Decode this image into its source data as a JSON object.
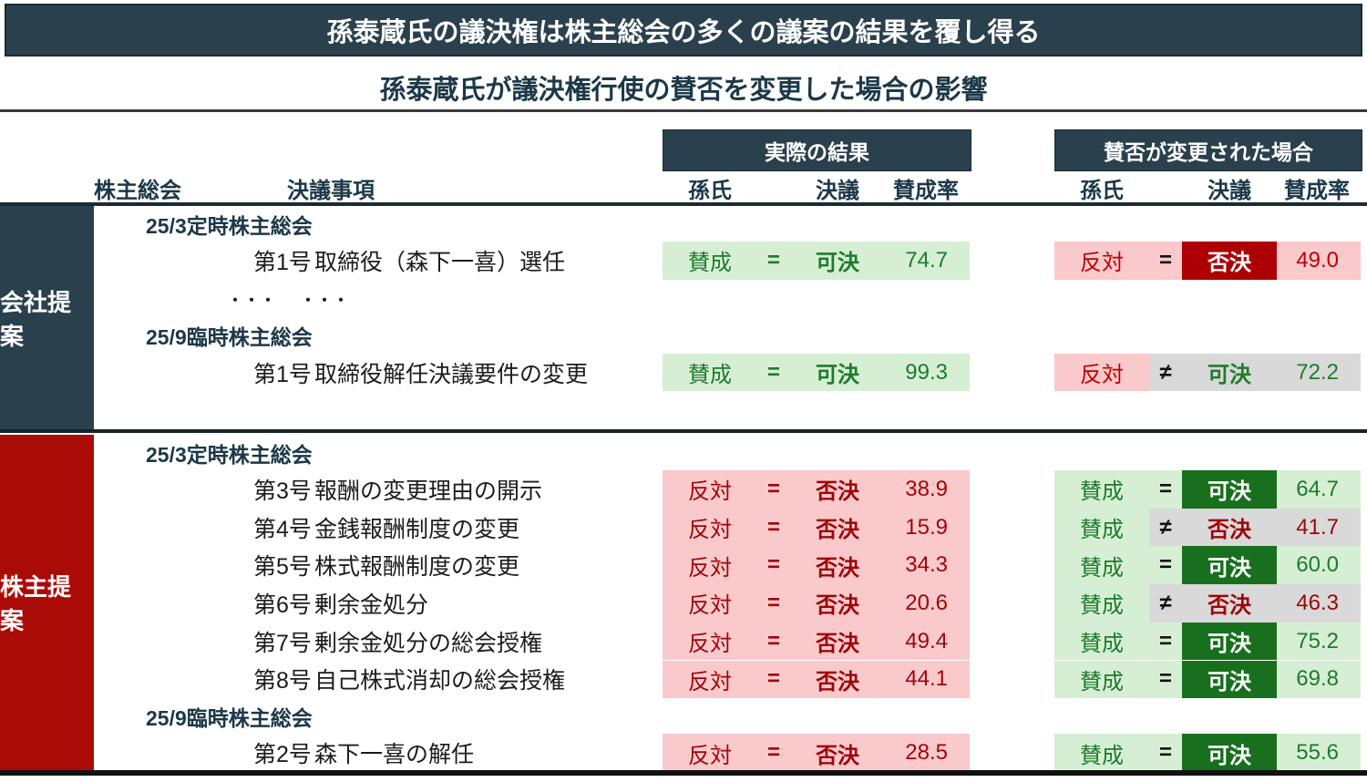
{
  "chart_data": {
    "type": "table",
    "title": "孫泰蔵氏の議決権は株主総会の多くの議案の結果を覆し得る",
    "subtitle": "孫泰蔵氏が議決権行使の賛否を変更した場合の影響",
    "column_groups": {
      "actual": "実際の結果",
      "changed": "賛否が変更された場合"
    },
    "columns": {
      "meeting": "株主総会",
      "item": "決議事項",
      "son": "孫氏",
      "resolution": "決議",
      "rate": "賛成率"
    },
    "dots_text": "・・・",
    "colors": {
      "slate": "#2a404d",
      "slateBorder": "#1b2a33",
      "slateText": "#1c3848",
      "sbRed": "#ab0b07",
      "lGreen": "#d6efd4",
      "txGreen": "#1e7b2c",
      "solidGreen": "#186f1e",
      "pink": "#f9c9cc",
      "txRed": "#9e0508",
      "txRedBr": "#c00000",
      "solidRed": "#ad0004",
      "gray": "#d9d9d9",
      "rule": "#1b2a33",
      "bottom": "#111111"
    },
    "sections": [
      {
        "label": "会社提案",
        "rows": [
          {
            "type": "meeting",
            "text": "25/3定時株主総会"
          },
          {
            "type": "item",
            "no": "第1号",
            "text": "取締役（森下一喜）選任",
            "actual": {
              "bg": "green",
              "vote": "賛成",
              "sym": "=",
              "result": "可決",
              "rate": "74.7",
              "style": "plain-green"
            },
            "changed": {
              "bg": "pink",
              "vote": "反対",
              "sym": "=",
              "result": "否決",
              "rate": "49.0",
              "style": "solid-red"
            }
          },
          {
            "type": "dots"
          },
          {
            "type": "meeting",
            "text": "25/9臨時株主総会"
          },
          {
            "type": "item",
            "no": "第1号",
            "text": "取締役解任決議要件の変更",
            "actual": {
              "bg": "green",
              "vote": "賛成",
              "sym": "=",
              "result": "可決",
              "rate": "99.3",
              "style": "plain-green"
            },
            "changed": {
              "bg": "pink",
              "vote": "反対",
              "sym": "≠",
              "result": "可決",
              "rate": "72.2",
              "style": "gray-green"
            }
          }
        ]
      },
      {
        "label": "株主提案",
        "rows": [
          {
            "type": "meeting",
            "text": "25/3定時株主総会"
          },
          {
            "type": "item",
            "no": "第3号",
            "text": "報酬の変更理由の開示",
            "actual": {
              "bg": "pink",
              "vote": "反対",
              "sym": "=",
              "result": "否決",
              "rate": "38.9",
              "style": "plain-red"
            },
            "changed": {
              "bg": "green",
              "vote": "賛成",
              "sym": "=",
              "result": "可決",
              "rate": "64.7",
              "style": "solid-green"
            }
          },
          {
            "type": "item",
            "no": "第4号",
            "text": "金銭報酬制度の変更",
            "actual": {
              "bg": "pink",
              "vote": "反対",
              "sym": "=",
              "result": "否決",
              "rate": "15.9",
              "style": "plain-red"
            },
            "changed": {
              "bg": "green",
              "vote": "賛成",
              "sym": "≠",
              "result": "否決",
              "rate": "41.7",
              "style": "gray-red"
            }
          },
          {
            "type": "item",
            "no": "第5号",
            "text": "株式報酬制度の変更",
            "actual": {
              "bg": "pink",
              "vote": "反対",
              "sym": "=",
              "result": "否決",
              "rate": "34.3",
              "style": "plain-red"
            },
            "changed": {
              "bg": "green",
              "vote": "賛成",
              "sym": "=",
              "result": "可決",
              "rate": "60.0",
              "style": "solid-green"
            }
          },
          {
            "type": "item",
            "no": "第6号",
            "text": "剰余金処分",
            "actual": {
              "bg": "pink",
              "vote": "反対",
              "sym": "=",
              "result": "否決",
              "rate": "20.6",
              "style": "plain-red"
            },
            "changed": {
              "bg": "green",
              "vote": "賛成",
              "sym": "≠",
              "result": "否決",
              "rate": "46.3",
              "style": "gray-red"
            }
          },
          {
            "type": "item",
            "no": "第7号",
            "text": "剰余金処分の総会授権",
            "actual": {
              "bg": "pink",
              "vote": "反対",
              "sym": "=",
              "result": "否決",
              "rate": "49.4",
              "style": "plain-red"
            },
            "changed": {
              "bg": "green",
              "vote": "賛成",
              "sym": "=",
              "result": "可決",
              "rate": "75.2",
              "style": "solid-green"
            }
          },
          {
            "type": "item",
            "no": "第8号",
            "text": "自己株式消却の総会授権",
            "actual": {
              "bg": "pink",
              "vote": "反対",
              "sym": "=",
              "result": "否決",
              "rate": "44.1",
              "style": "plain-red"
            },
            "changed": {
              "bg": "green",
              "vote": "賛成",
              "sym": "=",
              "result": "可決",
              "rate": "69.8",
              "style": "solid-green"
            }
          },
          {
            "type": "meeting",
            "text": "25/9臨時株主総会"
          },
          {
            "type": "item",
            "no": "第2号",
            "text": "森下一喜の解任",
            "actual": {
              "bg": "pink",
              "vote": "反対",
              "sym": "=",
              "result": "否決",
              "rate": "28.5",
              "style": "plain-red"
            },
            "changed": {
              "bg": "green",
              "vote": "賛成",
              "sym": "=",
              "result": "可決",
              "rate": "55.6",
              "style": "solid-green"
            }
          }
        ]
      }
    ]
  }
}
